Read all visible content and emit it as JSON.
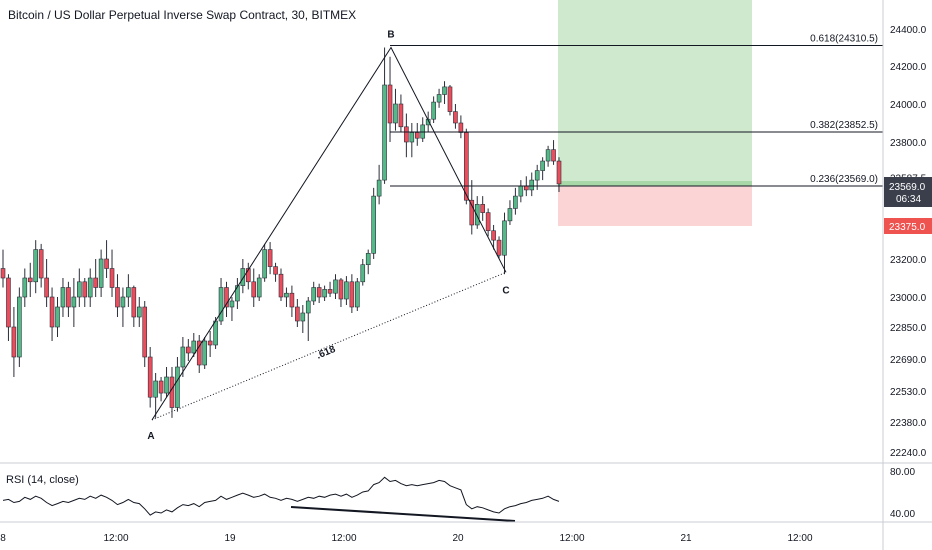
{
  "header": {
    "title": "Bitcoin / US Dollar Perpetual Inverse Swap Contract, 30, BITMEX"
  },
  "colors": {
    "up": "#26a69a",
    "up_fill": "#53b987",
    "down": "#ef5350",
    "down_fill": "#eb4d5c",
    "line": "#131722",
    "profit_zone": "#cfe9cf",
    "loss_zone": "#fbd5d5",
    "price_badge": "#3a3f4b",
    "stop_badge": "#ef5350"
  },
  "chart_data": [
    {
      "type": "candlestick",
      "title": "Bitcoin / US Dollar Perpetual Inverse Swap Contract, 30, BITMEX",
      "yaxis": {
        "ticks": [
          "24400.0",
          "24200.0",
          "24000.0",
          "23800.0",
          "23569.0",
          "23375.0",
          "23200.0",
          "23000.0",
          "22850.0",
          "22690.0",
          "22530.0",
          "22380.0",
          "22240.0"
        ],
        "tick_values": [
          24400,
          24200,
          24000,
          23800,
          23569,
          23375,
          23200,
          23000,
          22850,
          22690,
          22530,
          22380,
          22240
        ],
        "current_price": "23569.0",
        "countdown": "06:34",
        "stop_label": "23375.0",
        "hidden_label": "23587.5"
      },
      "xaxis": {
        "ticks": [
          "8",
          "12:00",
          "19",
          "12:00",
          "20",
          "12:00",
          "21",
          "12:00"
        ]
      },
      "fib_levels": [
        {
          "label": "0.618(24310.5)",
          "value": 24310.5
        },
        {
          "label": "0.382(23852.5)",
          "value": 23852.5
        },
        {
          "label": "0.236(23569.0)",
          "value": 23569.0
        }
      ],
      "points": [
        {
          "label": "A",
          "value": 22390
        },
        {
          "label": "B",
          "value": 24300
        },
        {
          "label": "C",
          "value": 23130
        }
      ],
      "annotation": ".618",
      "position_tool": {
        "entry": 23569.0,
        "target": 24430,
        "stop": 23375.0
      },
      "candles": [
        [
          23150,
          23250,
          23050,
          23100
        ],
        [
          23100,
          23120,
          22780,
          22850
        ],
        [
          22850,
          22950,
          22600,
          22700
        ],
        [
          22700,
          23050,
          22650,
          23000
        ],
        [
          23000,
          23150,
          22950,
          23100
        ],
        [
          23100,
          23180,
          23000,
          23080
        ],
        [
          23080,
          23300,
          23020,
          23250
        ],
        [
          23250,
          23280,
          23050,
          23100
        ],
        [
          23100,
          23200,
          22950,
          23000
        ],
        [
          23000,
          23050,
          22780,
          22850
        ],
        [
          22850,
          23000,
          22800,
          22950
        ],
        [
          22950,
          23100,
          22900,
          23050
        ],
        [
          23050,
          23080,
          22900,
          22950
        ],
        [
          22950,
          23100,
          22850,
          23000
        ],
        [
          23000,
          23150,
          22950,
          23080
        ],
        [
          23080,
          23100,
          22950,
          23000
        ],
        [
          23000,
          23150,
          22950,
          23100
        ],
        [
          23100,
          23200,
          23000,
          23050
        ],
        [
          23050,
          23250,
          23000,
          23200
        ],
        [
          23200,
          23300,
          23100,
          23150
        ],
        [
          23150,
          23250,
          23000,
          23050
        ],
        [
          23050,
          23120,
          22900,
          22950
        ],
        [
          22950,
          23050,
          22850,
          23000
        ],
        [
          23000,
          23120,
          22950,
          23050
        ],
        [
          23050,
          23060,
          22850,
          22900
        ],
        [
          22900,
          23000,
          22850,
          22950
        ],
        [
          22950,
          22980,
          22650,
          22700
        ],
        [
          22700,
          22750,
          22450,
          22500
        ],
        [
          22500,
          22620,
          22400,
          22580
        ],
        [
          22580,
          22600,
          22480,
          22520
        ],
        [
          22520,
          22650,
          22500,
          22600
        ],
        [
          22600,
          22650,
          22400,
          22450
        ],
        [
          22450,
          22700,
          22430,
          22650
        ],
        [
          22650,
          22800,
          22600,
          22750
        ],
        [
          22750,
          22790,
          22680,
          22720
        ],
        [
          22720,
          22820,
          22700,
          22780
        ],
        [
          22780,
          22810,
          22620,
          22660
        ],
        [
          22660,
          22800,
          22640,
          22780
        ],
        [
          22780,
          22830,
          22700,
          22760
        ],
        [
          22760,
          22900,
          22740,
          22880
        ],
        [
          22880,
          23100,
          22860,
          23050
        ],
        [
          23050,
          23080,
          22900,
          22950
        ],
        [
          22950,
          23000,
          22880,
          22980
        ],
        [
          22980,
          23100,
          22940,
          23060
        ],
        [
          23060,
          23200,
          23020,
          23150
        ],
        [
          23150,
          23180,
          23040,
          23080
        ],
        [
          23080,
          23150,
          22950,
          23000
        ],
        [
          23000,
          23120,
          22980,
          23100
        ],
        [
          23100,
          23280,
          23080,
          23250
        ],
        [
          23250,
          23290,
          23120,
          23160
        ],
        [
          23160,
          23180,
          23080,
          23120
        ],
        [
          23120,
          23150,
          22980,
          23000
        ],
        [
          23000,
          23050,
          22950,
          23020
        ],
        [
          23020,
          23060,
          22900,
          22950
        ],
        [
          22950,
          22990,
          22850,
          22880
        ],
        [
          22880,
          22960,
          22820,
          22920
        ],
        [
          22920,
          23000,
          22780,
          22980
        ],
        [
          22980,
          23080,
          22960,
          23050
        ],
        [
          23050,
          23070,
          22970,
          23000
        ],
        [
          23000,
          23060,
          22980,
          23040
        ],
        [
          23040,
          23080,
          23000,
          23020
        ],
        [
          23020,
          23120,
          22990,
          23090
        ],
        [
          23090,
          23100,
          22950,
          22990
        ],
        [
          22990,
          23110,
          22960,
          23080
        ],
        [
          23080,
          23120,
          22920,
          22950
        ],
        [
          22950,
          23100,
          22930,
          23080
        ],
        [
          23080,
          23200,
          23060,
          23170
        ],
        [
          23170,
          23250,
          23120,
          23230
        ],
        [
          23230,
          23560,
          23200,
          23520
        ],
        [
          23520,
          23680,
          23480,
          23600
        ],
        [
          23600,
          24300,
          23580,
          24100
        ],
        [
          24100,
          24250,
          23800,
          23900
        ],
        [
          23900,
          24080,
          23860,
          24000
        ],
        [
          24000,
          24050,
          23850,
          23880
        ],
        [
          23880,
          23950,
          23720,
          23800
        ],
        [
          23800,
          23900,
          23720,
          23850
        ],
        [
          23850,
          23900,
          23780,
          23820
        ],
        [
          23820,
          23930,
          23800,
          23890
        ],
        [
          23890,
          23960,
          23850,
          23920
        ],
        [
          23920,
          24040,
          23900,
          24010
        ],
        [
          24010,
          24080,
          23980,
          24050
        ],
        [
          24050,
          24120,
          24000,
          24090
        ],
        [
          24090,
          24100,
          23940,
          23960
        ],
        [
          23960,
          24000,
          23870,
          23900
        ],
        [
          23900,
          23940,
          23820,
          23850
        ],
        [
          23850,
          23870,
          23480,
          23500
        ],
        [
          23500,
          23600,
          23330,
          23380
        ],
        [
          23380,
          23520,
          23360,
          23480
        ],
        [
          23480,
          23520,
          23400,
          23440
        ],
        [
          23440,
          23460,
          23320,
          23350
        ],
        [
          23350,
          23380,
          23250,
          23300
        ],
        [
          23300,
          23320,
          23200,
          23220
        ],
        [
          23220,
          23440,
          23120,
          23400
        ],
        [
          23400,
          23500,
          23380,
          23460
        ],
        [
          23460,
          23560,
          23430,
          23520
        ],
        [
          23520,
          23600,
          23490,
          23570
        ],
        [
          23570,
          23620,
          23520,
          23550
        ],
        [
          23550,
          23640,
          23520,
          23600
        ],
        [
          23600,
          23680,
          23550,
          23650
        ],
        [
          23650,
          23720,
          23600,
          23700
        ],
        [
          23700,
          23780,
          23670,
          23760
        ],
        [
          23760,
          23810,
          23680,
          23700
        ],
        [
          23700,
          23720,
          23540,
          23580
        ]
      ],
      "rsi": {
        "title": "RSI (14, close)",
        "ticks": [
          "80.00",
          "40.00"
        ],
        "tick_values": [
          80,
          40
        ],
        "values": [
          52,
          53,
          50,
          51,
          55,
          53,
          56,
          54,
          50,
          47,
          49,
          51,
          50,
          52,
          54,
          53,
          56,
          54,
          57,
          55,
          52,
          48,
          50,
          53,
          50,
          49,
          44,
          38,
          41,
          40,
          43,
          41,
          45,
          48,
          47,
          49,
          46,
          50,
          51,
          52,
          56,
          53,
          55,
          57,
          59,
          57,
          55,
          56,
          58,
          55,
          54,
          52,
          54,
          53,
          51,
          53,
          55,
          54,
          56,
          55,
          57,
          58,
          56,
          58,
          55,
          57,
          60,
          61,
          67,
          69,
          74,
          70,
          71,
          68,
          66,
          67,
          66,
          67,
          68,
          69,
          71,
          70,
          66,
          64,
          62,
          48,
          44,
          46,
          45,
          43,
          41,
          40,
          44,
          46,
          47,
          49,
          50,
          52,
          53,
          54,
          56,
          53,
          51
        ],
        "divergence_line": [
          [
            22950,
            0.78
          ],
          [
            23400,
            0.7
          ]
        ]
      }
    }
  ]
}
